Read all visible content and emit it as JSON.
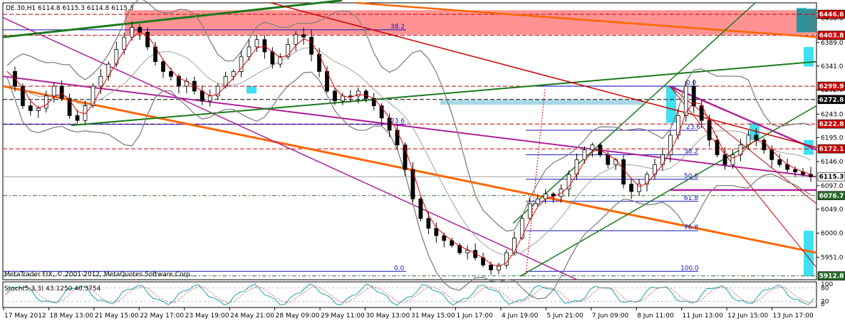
{
  "header": {
    "symbol_info": "DE.30,H1  6114.8 6115.3 6114.8 6115.3"
  },
  "indicator": {
    "label": "Stoch(5,3,3) 43.1250 40.3754"
  },
  "copyright": "MetaTrader FIX, © 2001-2012, MetaQuotes Software Corp.",
  "colors": {
    "bull_candle": "#ffffff",
    "bear_candle": "#000000",
    "band_gray": "#808080",
    "ma_red": "#e00000",
    "trend_orange": "#ff6600",
    "trend_magenta": "#b0209a",
    "trend_green": "#1a7a1a",
    "level_red": "#cc0000",
    "level_darkgreen": "#2a6a2a",
    "zone_pink": "#ff8080",
    "zone_cyan": "#40e0f0",
    "zone_lightblue": "#a8d8e8",
    "fib_blue": "#1010c0",
    "grid": "#c0c0c0"
  },
  "chart_data": {
    "type": "candlestick",
    "instrument": "DE.30",
    "timeframe": "H1",
    "y_range": [
      5905,
      6470
    ],
    "price_axis_ticks": [
      6438.6,
      6389.0,
      6341.0,
      6292.6,
      6243.0,
      6195.0,
      6146.0,
      6097.0,
      6049.0,
      6000.0,
      5951.0
    ],
    "price_tags": [
      {
        "value": "6446.6",
        "price": 6446.6,
        "style": "red"
      },
      {
        "value": "6403.8",
        "price": 6403.8,
        "style": "red"
      },
      {
        "value": "6299.9",
        "price": 6299.9,
        "style": "red"
      },
      {
        "value": "6272.8",
        "price": 6272.8,
        "style": "black"
      },
      {
        "value": "6222.8",
        "price": 6222.8,
        "style": "red"
      },
      {
        "value": "6172.1",
        "price": 6172.1,
        "style": "red"
      },
      {
        "value": "6115.3",
        "price": 6115.3,
        "style": "current"
      },
      {
        "value": "6076.7",
        "price": 6076.7,
        "style": "darkgreen"
      },
      {
        "value": "5912.8",
        "price": 5912.8,
        "style": "darkgreen"
      }
    ],
    "time_labels": [
      "17 May 2012",
      "18 May 13:00",
      "21 May 15:00",
      "22 May 17:00",
      "23 May 19:00",
      "24 May 21:00",
      "28 May 09:00",
      "29 May 11:00",
      "30 May 13:00",
      "31 May 15:00",
      "1 Jun 17:00",
      "4 Jun 19:00",
      "5 Jun 21:00",
      "7 Jun 09:00",
      "8 Jun 11:00",
      "11 Jun 13:00",
      "12 Jun 15:00",
      "13 Jun 17:00"
    ],
    "fib_left": [
      "38.2",
      "23.6",
      "0.0"
    ],
    "fib_right": [
      "0.0",
      "23.6",
      "38.2",
      "50.0",
      "61.8",
      "76.8",
      "100.0"
    ],
    "close_path": [
      6330,
      6300,
      6260,
      6250,
      6255,
      6280,
      6300,
      6275,
      6240,
      6230,
      6260,
      6300,
      6320,
      6345,
      6375,
      6400,
      6420,
      6410,
      6380,
      6350,
      6330,
      6320,
      6300,
      6310,
      6290,
      6270,
      6280,
      6300,
      6320,
      6330,
      6360,
      6380,
      6395,
      6370,
      6345,
      6360,
      6385,
      6405,
      6400,
      6365,
      6330,
      6290,
      6270,
      6280,
      6280,
      6290,
      6275,
      6260,
      6235,
      6210,
      6180,
      6130,
      6070,
      6030,
      6010,
      5995,
      5985,
      5975,
      5960,
      5965,
      5950,
      5935,
      5925,
      5935,
      5960,
      5990,
      6030,
      6060,
      6070,
      6080,
      6075,
      6090,
      6120,
      6150,
      6170,
      6180,
      6160,
      6140,
      6150,
      6100,
      6085,
      6100,
      6120,
      6140,
      6160,
      6200,
      6240,
      6300,
      6260,
      6230,
      6190,
      6160,
      6140,
      6160,
      6180,
      6200,
      6190,
      6170,
      6150,
      6140,
      6130,
      6125,
      6120,
      6115
    ]
  }
}
